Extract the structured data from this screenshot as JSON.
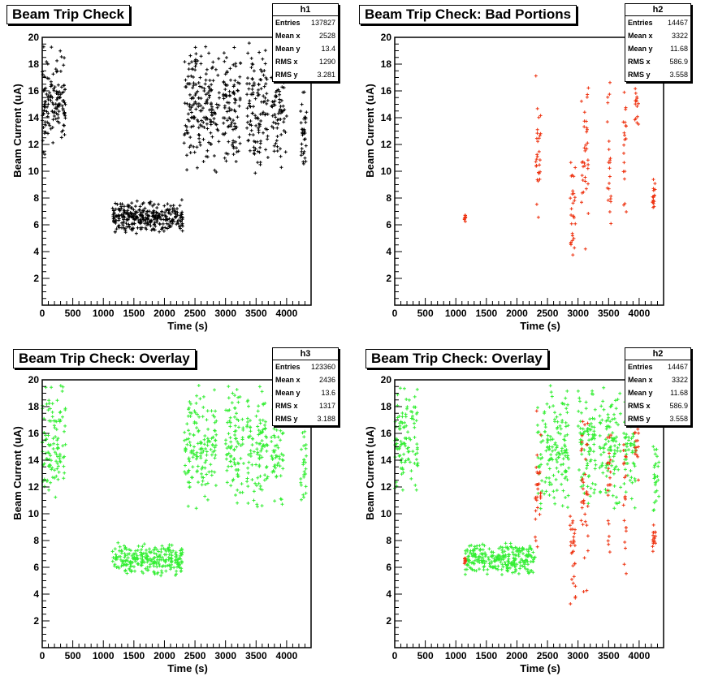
{
  "colors": {
    "background": "#ffffff",
    "frame": "#000000",
    "black_series": "#000000",
    "red_series": "#ee3311",
    "green_series": "#33ee33"
  },
  "panels": [
    {
      "title": "Beam Trip Check",
      "stats": {
        "name": "h1",
        "rows": [
          {
            "label": "Entries",
            "value": "137827"
          },
          {
            "label": "Mean x",
            "value": "2528"
          },
          {
            "label": "Mean y",
            "value": "13.4"
          },
          {
            "label": "RMS x",
            "value": "1290"
          },
          {
            "label": "RMS y",
            "value": "3.281"
          }
        ]
      }
    },
    {
      "title": "Beam Trip Check: Bad Portions",
      "stats": {
        "name": "h2",
        "rows": [
          {
            "label": "Entries",
            "value": "14467"
          },
          {
            "label": "Mean x",
            "value": "3322"
          },
          {
            "label": "Mean y",
            "value": "11.68"
          },
          {
            "label": "RMS x",
            "value": "586.9"
          },
          {
            "label": "RMS y",
            "value": "3.558"
          }
        ]
      }
    },
    {
      "title": "Beam Trip Check: Overlay",
      "stats": {
        "name": "h3",
        "rows": [
          {
            "label": "Entries",
            "value": "123360"
          },
          {
            "label": "Mean x",
            "value": "2436"
          },
          {
            "label": "Mean y",
            "value": "13.6"
          },
          {
            "label": "RMS x",
            "value": "1317"
          },
          {
            "label": "RMS y",
            "value": "3.188"
          }
        ]
      }
    },
    {
      "title": "Beam Trip Check: Overlay",
      "stats": {
        "name": "h2",
        "rows": [
          {
            "label": "Entries",
            "value": "14467"
          },
          {
            "label": "Mean x",
            "value": "3322"
          },
          {
            "label": "Mean y",
            "value": "11.68"
          },
          {
            "label": "RMS x",
            "value": "586.9"
          },
          {
            "label": "RMS y",
            "value": "3.558"
          }
        ]
      }
    }
  ],
  "chart_data": [
    {
      "type": "scatter",
      "title": "Beam Trip Check",
      "xlabel": "Time (s)",
      "ylabel": "Beam Current (uA)",
      "xlim": [
        0,
        4400
      ],
      "ylim": [
        0,
        20
      ],
      "xticks": [
        0,
        500,
        1000,
        1500,
        2000,
        2500,
        3000,
        3500,
        4000
      ],
      "yticks": [
        2,
        4,
        6,
        8,
        10,
        12,
        14,
        16,
        18,
        20
      ],
      "series": [
        {
          "color": "#000000",
          "marker": "+",
          "clusters": [
            {
              "x": [
                0,
                380
              ],
              "y_center": 15.2,
              "y_spread": 4.2,
              "density": 9
            },
            {
              "x": [
                1150,
                2300
              ],
              "y_center": 6.6,
              "y_spread": 1.3,
              "density": 7
            },
            {
              "x": [
                2320,
                2900
              ],
              "y_center": 14.8,
              "y_spread": 5.2,
              "density": 8
            },
            {
              "x": [
                2950,
                3250
              ],
              "y_center": 14.8,
              "y_spread": 5.2,
              "density": 8
            },
            {
              "x": [
                3350,
                3700
              ],
              "y_center": 14.8,
              "y_spread": 5.2,
              "density": 8
            },
            {
              "x": [
                3750,
                4000
              ],
              "y_center": 14.8,
              "y_spread": 5.0,
              "density": 8
            },
            {
              "x": [
                4230,
                4330
              ],
              "y_center": 13.0,
              "y_spread": 4.0,
              "density": 7
            }
          ]
        }
      ]
    },
    {
      "type": "scatter",
      "title": "Beam Trip Check: Bad Portions",
      "xlabel": "Time (s)",
      "ylabel": "Beam Current (uA)",
      "xlim": [
        0,
        4400
      ],
      "ylim": [
        0,
        20
      ],
      "xticks": [
        0,
        500,
        1000,
        1500,
        2000,
        2500,
        3000,
        3500,
        4000
      ],
      "yticks": [
        2,
        4,
        6,
        8,
        10,
        12,
        14,
        16,
        18,
        20
      ],
      "series": [
        {
          "color": "#ee3311",
          "marker": "+",
          "clusters": [
            {
              "x": [
                1140,
                1160
              ],
              "y_center": 6.5,
              "y_spread": 0.3,
              "density": 2
            },
            {
              "x": [
                2300,
                2390
              ],
              "y_center": 11.0,
              "y_spread": 7.0,
              "density": 6
            },
            {
              "x": [
                2870,
                2960
              ],
              "y_center": 6.5,
              "y_spread": 4.5,
              "density": 6
            },
            {
              "x": [
                3050,
                3170
              ],
              "y_center": 11.5,
              "y_spread": 8.0,
              "density": 6
            },
            {
              "x": [
                3480,
                3540
              ],
              "y_center": 11.0,
              "y_spread": 7.5,
              "density": 6
            },
            {
              "x": [
                3740,
                3790
              ],
              "y_center": 11.0,
              "y_spread": 7.5,
              "density": 6
            },
            {
              "x": [
                3930,
                3990
              ],
              "y_center": 15.5,
              "y_spread": 4.0,
              "density": 5
            },
            {
              "x": [
                4220,
                4270
              ],
              "y_center": 8.0,
              "y_spread": 1.5,
              "density": 4
            }
          ]
        }
      ]
    },
    {
      "type": "scatter",
      "title": "Beam Trip Check: Overlay",
      "xlabel": "Time (s)",
      "ylabel": "Beam Current (uA)",
      "xlim": [
        0,
        4400
      ],
      "ylim": [
        0,
        20
      ],
      "xticks": [
        0,
        500,
        1000,
        1500,
        2000,
        2500,
        3000,
        3500,
        4000
      ],
      "yticks": [
        2,
        4,
        6,
        8,
        10,
        12,
        14,
        16,
        18,
        20
      ],
      "series": [
        {
          "color": "#33ee33",
          "marker": "+",
          "clusters": [
            {
              "x": [
                0,
                380
              ],
              "y_center": 15.2,
              "y_spread": 4.6,
              "density": 7
            },
            {
              "x": [
                1150,
                2300
              ],
              "y_center": 6.6,
              "y_spread": 1.3,
              "density": 6
            },
            {
              "x": [
                2320,
                2850
              ],
              "y_center": 15.0,
              "y_spread": 5.0,
              "density": 7
            },
            {
              "x": [
                3000,
                3300
              ],
              "y_center": 15.0,
              "y_spread": 5.0,
              "density": 7
            },
            {
              "x": [
                3350,
                3700
              ],
              "y_center": 15.0,
              "y_spread": 5.0,
              "density": 7
            },
            {
              "x": [
                3750,
                3950
              ],
              "y_center": 15.0,
              "y_spread": 5.0,
              "density": 7
            },
            {
              "x": [
                4230,
                4330
              ],
              "y_center": 13.0,
              "y_spread": 4.0,
              "density": 5
            }
          ]
        }
      ]
    },
    {
      "type": "scatter",
      "title": "Beam Trip Check: Overlay",
      "xlabel": "Time (s)",
      "ylabel": "Beam Current (uA)",
      "xlim": [
        0,
        4400
      ],
      "ylim": [
        0,
        20
      ],
      "xticks": [
        0,
        500,
        1000,
        1500,
        2000,
        2500,
        3000,
        3500,
        4000
      ],
      "yticks": [
        2,
        4,
        6,
        8,
        10,
        12,
        14,
        16,
        18,
        20
      ],
      "series": [
        {
          "color": "#33ee33",
          "marker": "+",
          "clusters": [
            {
              "x": [
                0,
                380
              ],
              "y_center": 15.2,
              "y_spread": 4.6,
              "density": 7
            },
            {
              "x": [
                1150,
                2300
              ],
              "y_center": 6.6,
              "y_spread": 1.3,
              "density": 6
            },
            {
              "x": [
                2320,
                2850
              ],
              "y_center": 15.0,
              "y_spread": 5.0,
              "density": 7
            },
            {
              "x": [
                3000,
                3300
              ],
              "y_center": 15.0,
              "y_spread": 5.0,
              "density": 7
            },
            {
              "x": [
                3350,
                3700
              ],
              "y_center": 15.0,
              "y_spread": 5.0,
              "density": 7
            },
            {
              "x": [
                3750,
                3950
              ],
              "y_center": 15.0,
              "y_spread": 5.0,
              "density": 7
            },
            {
              "x": [
                4230,
                4330
              ],
              "y_center": 13.0,
              "y_spread": 4.0,
              "density": 5
            }
          ]
        },
        {
          "color": "#ee3311",
          "marker": "+",
          "clusters": [
            {
              "x": [
                1140,
                1160
              ],
              "y_center": 6.5,
              "y_spread": 0.3,
              "density": 2
            },
            {
              "x": [
                2300,
                2390
              ],
              "y_center": 11.0,
              "y_spread": 7.0,
              "density": 6
            },
            {
              "x": [
                2870,
                2960
              ],
              "y_center": 6.5,
              "y_spread": 4.5,
              "density": 6
            },
            {
              "x": [
                3050,
                3170
              ],
              "y_center": 11.5,
              "y_spread": 8.0,
              "density": 6
            },
            {
              "x": [
                3480,
                3540
              ],
              "y_center": 11.0,
              "y_spread": 7.5,
              "density": 6
            },
            {
              "x": [
                3740,
                3790
              ],
              "y_center": 11.0,
              "y_spread": 7.5,
              "density": 6
            },
            {
              "x": [
                3930,
                3990
              ],
              "y_center": 15.5,
              "y_spread": 4.0,
              "density": 5
            },
            {
              "x": [
                4220,
                4270
              ],
              "y_center": 8.0,
              "y_spread": 1.5,
              "density": 4
            }
          ]
        }
      ]
    }
  ]
}
